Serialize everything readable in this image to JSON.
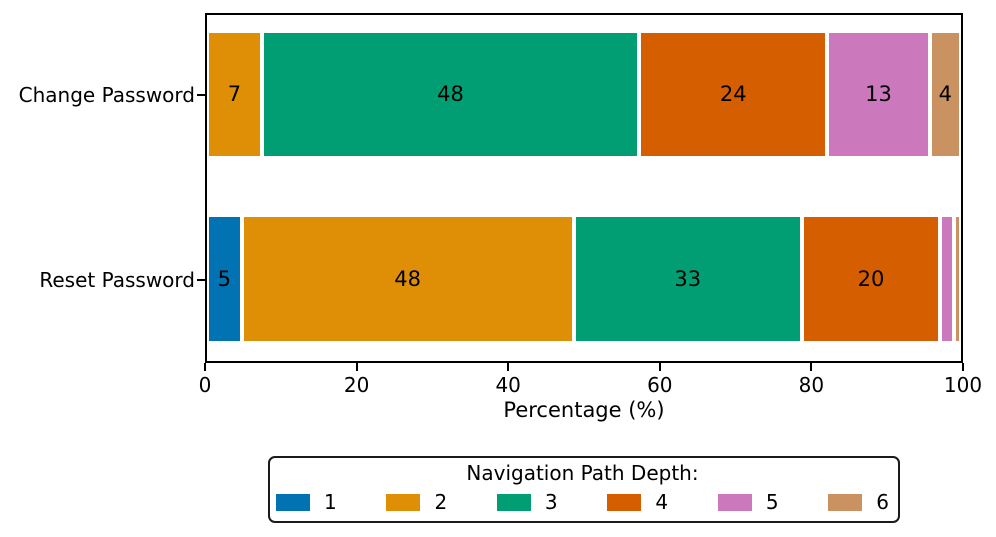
{
  "chart_data": {
    "type": "bar",
    "orientation": "horizontal",
    "stacked": true,
    "normalized_to_100": true,
    "title": "",
    "xlabel": "Percentage (%)",
    "ylabel": "",
    "xlim": [
      0,
      100
    ],
    "xticks": [
      "0",
      "20",
      "40",
      "60",
      "80",
      "100"
    ],
    "grid": false,
    "categories": [
      "Change Password",
      "Reset Password"
    ],
    "legend": {
      "title": "Navigation Path Depth:",
      "position": "bottom-center"
    },
    "series": [
      {
        "name": "1",
        "color": "#0173b2",
        "values": [
          0,
          5
        ],
        "labels": [
          "",
          "5"
        ]
      },
      {
        "name": "2",
        "color": "#de8f05",
        "values": [
          7,
          48
        ],
        "labels": [
          "7",
          "48"
        ]
      },
      {
        "name": "3",
        "color": "#029e73",
        "values": [
          48,
          33
        ],
        "labels": [
          "48",
          "33"
        ]
      },
      {
        "name": "4",
        "color": "#d55e00",
        "values": [
          24,
          20
        ],
        "labels": [
          "24",
          "20"
        ]
      },
      {
        "name": "5",
        "color": "#cc78bc",
        "values": [
          13,
          2
        ],
        "labels": [
          "13",
          ""
        ]
      },
      {
        "name": "6",
        "color": "#ca9161",
        "values": [
          4,
          1
        ],
        "labels": [
          "4",
          ""
        ]
      }
    ],
    "colors": {
      "spine": "#000000",
      "text": "#000000",
      "segment_edge": "#ffffff",
      "background": "#ffffff"
    }
  }
}
